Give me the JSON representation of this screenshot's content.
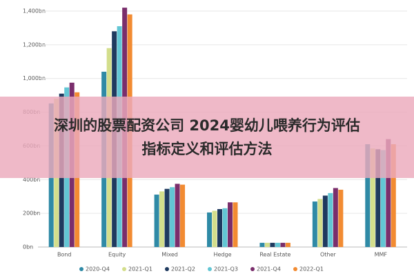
{
  "chart_data": {
    "type": "bar",
    "categories": [
      "Bond",
      "Equity",
      "Mixed",
      "Hedge",
      "Real Estate",
      "Other",
      "MMF"
    ],
    "series": [
      {
        "name": "2020-Q4",
        "color": "#2f8aa6",
        "values": [
          852,
          1040,
          311,
          205,
          25,
          270,
          610
        ]
      },
      {
        "name": "2021-Q1",
        "color": "#d3de8c",
        "values": [
          880,
          1180,
          330,
          215,
          25,
          285,
          585
        ]
      },
      {
        "name": "2021-Q2",
        "color": "#1f3a5f",
        "values": [
          910,
          1280,
          345,
          225,
          25,
          305,
          580
        ]
      },
      {
        "name": "2021-Q3",
        "color": "#62c6d4",
        "values": [
          947,
          1310,
          355,
          230,
          25,
          320,
          575
        ]
      },
      {
        "name": "2021-Q4",
        "color": "#7a2e6c",
        "values": [
          975,
          1420,
          375,
          265,
          25,
          350,
          640
        ]
      },
      {
        "name": "2022-Q1",
        "color": "#f28b32",
        "values": [
          918,
          1380,
          370,
          265,
          25,
          340,
          610
        ]
      }
    ],
    "ylim": [
      0,
      1400
    ],
    "yticks": [
      {
        "value": 0,
        "label": "0bn"
      },
      {
        "value": 200,
        "label": "200bn"
      },
      {
        "value": 400,
        "label": "400bn"
      },
      {
        "value": 600,
        "label": "600bn"
      },
      {
        "value": 800,
        "label": "800bn"
      },
      {
        "value": 1000,
        "label": "1,000bn"
      },
      {
        "value": 1200,
        "label": "1,200bn"
      },
      {
        "value": 1400,
        "label": "1,400bn"
      }
    ],
    "grid": true,
    "legend": "bottom",
    "banner": [
      "深圳的股票配资公司 2024婴幼儿喂养行为评估",
      "指标定义和评估方法"
    ]
  }
}
